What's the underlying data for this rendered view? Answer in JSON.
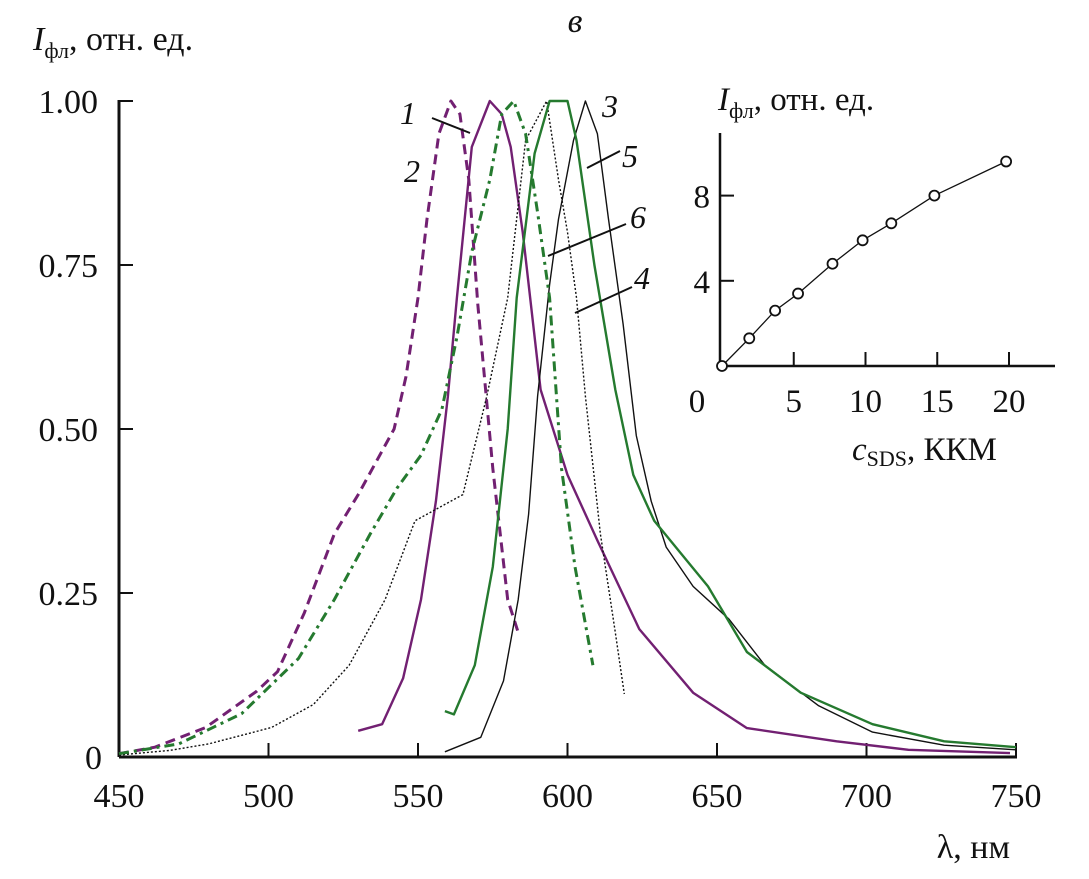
{
  "panel_label": "в",
  "colors": {
    "purple": "#722072",
    "green": "#257a2f",
    "black": "#111111"
  },
  "chart_data": [
    {
      "type": "line",
      "ylabel_main": "I",
      "ylabel_sub": "фл",
      "ylabel_rest": ", отн. ед.",
      "xlabel": "λ, нм",
      "xlim": [
        450,
        750
      ],
      "ylim": [
        0,
        1.0
      ],
      "xticks": [
        "450",
        "500",
        "550",
        "600",
        "650",
        "700",
        "750"
      ],
      "xtick_values": [
        450,
        500,
        550,
        600,
        650,
        700,
        750
      ],
      "yticks": [
        "0",
        "0.25",
        "0.50",
        "0.75",
        "1.00"
      ],
      "ytick_values": [
        0,
        0.25,
        0.5,
        0.75,
        1.0
      ],
      "grid": false,
      "series": [
        {
          "name": "1",
          "color": "purple",
          "style": "solid",
          "points": [
            [
              530,
              0.04
            ],
            [
              538,
              0.05
            ],
            [
              545,
              0.12
            ],
            [
              551,
              0.24
            ],
            [
              556,
              0.39
            ],
            [
              560,
              0.55
            ],
            [
              563,
              0.7
            ],
            [
              568,
              0.93
            ],
            [
              574,
              1.0
            ],
            [
              578,
              0.98
            ],
            [
              581,
              0.93
            ],
            [
              585,
              0.8
            ],
            [
              591,
              0.56
            ],
            [
              600,
              0.43
            ],
            [
              610,
              0.33
            ],
            [
              624,
              0.195
            ],
            [
              642,
              0.098
            ],
            [
              660,
              0.044
            ],
            [
              690,
              0.024
            ],
            [
              714,
              0.011
            ],
            [
              748,
              0.006
            ]
          ]
        },
        {
          "name": "2",
          "color": "purple",
          "style": "dashed",
          "points": [
            [
              450,
              0.005
            ],
            [
              462,
              0.015
            ],
            [
              479,
              0.045
            ],
            [
              496,
              0.1
            ],
            [
              503,
              0.13
            ],
            [
              512,
              0.22
            ],
            [
              522,
              0.34
            ],
            [
              530,
              0.4
            ],
            [
              542,
              0.5
            ],
            [
              546,
              0.58
            ],
            [
              550,
              0.7
            ],
            [
              553,
              0.82
            ],
            [
              557,
              0.95
            ],
            [
              561,
              1.0
            ],
            [
              564,
              0.98
            ],
            [
              567,
              0.88
            ],
            [
              570,
              0.69
            ],
            [
              575,
              0.44
            ],
            [
              580,
              0.24
            ],
            [
              583.5,
              0.19
            ]
          ]
        },
        {
          "name": "3",
          "color": "black",
          "style": "solid",
          "points": [
            [
              559,
              0.008
            ],
            [
              571,
              0.03
            ],
            [
              578.6,
              0.116
            ],
            [
              583.5,
              0.24
            ],
            [
              587,
              0.37
            ],
            [
              590,
              0.55
            ],
            [
              594,
              0.72
            ],
            [
              597,
              0.82
            ],
            [
              602,
              0.94
            ],
            [
              606,
              1.0
            ],
            [
              610,
              0.95
            ],
            [
              613.7,
              0.82
            ],
            [
              618.6,
              0.66
            ],
            [
              623,
              0.49
            ],
            [
              628,
              0.39
            ],
            [
              633,
              0.32
            ],
            [
              642,
              0.26
            ],
            [
              654,
              0.21
            ],
            [
              666,
              0.14
            ],
            [
              684,
              0.078
            ],
            [
              702,
              0.038
            ],
            [
              726,
              0.018
            ],
            [
              750,
              0.011
            ]
          ]
        },
        {
          "name": "4",
          "color": "black",
          "style": "dotted",
          "points": [
            [
              450,
              0.003
            ],
            [
              467,
              0.01
            ],
            [
              480,
              0.02
            ],
            [
              501,
              0.045
            ],
            [
              515,
              0.08
            ],
            [
              527,
              0.14
            ],
            [
              539,
              0.24
            ],
            [
              549,
              0.36
            ],
            [
              557,
              0.38
            ],
            [
              565,
              0.4
            ],
            [
              573,
              0.55
            ],
            [
              580,
              0.7
            ],
            [
              586,
              0.94
            ],
            [
              593,
              1.0
            ],
            [
              597,
              0.88
            ],
            [
              600,
              0.8
            ],
            [
              603,
              0.7
            ],
            [
              606,
              0.55
            ],
            [
              611,
              0.34
            ],
            [
              616,
              0.19
            ],
            [
              619,
              0.096
            ]
          ]
        },
        {
          "name": "5",
          "color": "green",
          "style": "solid",
          "points": [
            [
              559,
              0.07
            ],
            [
              562,
              0.065
            ],
            [
              569,
              0.14
            ],
            [
              575,
              0.29
            ],
            [
              580,
              0.5
            ],
            [
              583,
              0.7
            ],
            [
              589,
              0.92
            ],
            [
              594,
              1.0
            ],
            [
              600,
              1.0
            ],
            [
              603,
              0.94
            ],
            [
              609,
              0.75
            ],
            [
              616,
              0.56
            ],
            [
              622,
              0.43
            ],
            [
              629,
              0.36
            ],
            [
              638,
              0.31
            ],
            [
              647,
              0.26
            ],
            [
              660,
              0.16
            ],
            [
              678,
              0.098
            ],
            [
              702,
              0.05
            ],
            [
              726,
              0.024
            ],
            [
              750,
              0.015
            ]
          ]
        },
        {
          "name": "6",
          "color": "green",
          "style": "dashdot",
          "points": [
            [
              450,
              0.005
            ],
            [
              470,
              0.02
            ],
            [
              491,
              0.066
            ],
            [
              510,
              0.15
            ],
            [
              522,
              0.24
            ],
            [
              534,
              0.34
            ],
            [
              543,
              0.41
            ],
            [
              551,
              0.46
            ],
            [
              558,
              0.53
            ],
            [
              563,
              0.64
            ],
            [
              568,
              0.77
            ],
            [
              574,
              0.88
            ],
            [
              578,
              0.98
            ],
            [
              582,
              1.0
            ],
            [
              586,
              0.95
            ],
            [
              590,
              0.83
            ],
            [
              594,
              0.7
            ],
            [
              598,
              0.44
            ],
            [
              602.5,
              0.29
            ],
            [
              608.5,
              0.14
            ]
          ]
        }
      ]
    },
    {
      "type": "line",
      "ylabel_main": "I",
      "ylabel_sub": "фл",
      "ylabel_rest": ", отн. ед.",
      "xlabel_main": "c",
      "xlabel_sub": "SDS",
      "xlabel_rest": ", ККМ",
      "xlim": [
        0,
        23.5
      ],
      "ylim": [
        0,
        11
      ],
      "xticks": [
        "0",
        "5",
        "10",
        "15",
        "20"
      ],
      "xtick_values": [
        0,
        5,
        10,
        15,
        20
      ],
      "yticks": [
        "4",
        "8"
      ],
      "ytick_values": [
        4,
        8
      ],
      "grid": false,
      "marker": "open-circle",
      "x": [
        0,
        1.9,
        3.7,
        5.3,
        7.7,
        9.8,
        11.8,
        14.8,
        19.8
      ],
      "y": [
        0,
        1.3,
        2.6,
        3.4,
        4.8,
        5.9,
        6.7,
        8.0,
        9.6
      ]
    }
  ]
}
